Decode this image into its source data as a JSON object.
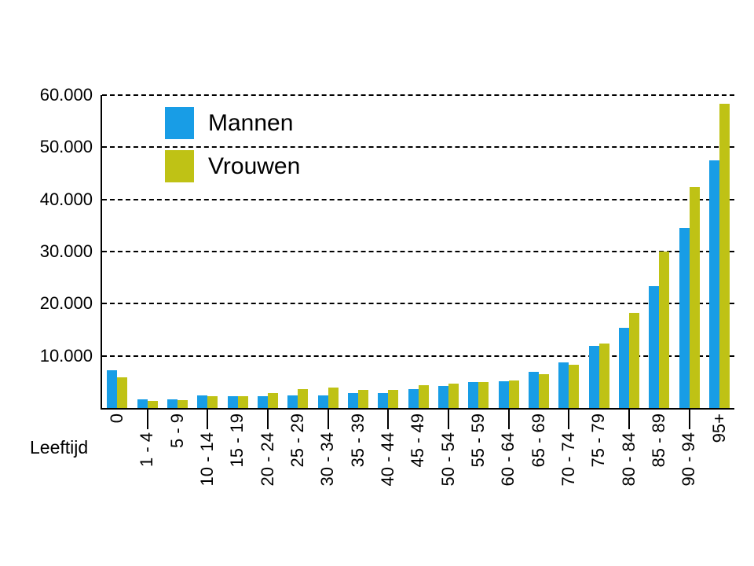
{
  "chart_data": {
    "type": "bar",
    "title": "",
    "xlabel": "Leeftijd",
    "ylabel": "",
    "categories": [
      "0",
      "1 - 4",
      "5 - 9",
      "10 - 14",
      "15 - 19",
      "20 - 24",
      "25 - 29",
      "30 - 34",
      "35 - 39",
      "40 - 44",
      "45 - 49",
      "50 - 54",
      "55 - 59",
      "60 - 64",
      "65 - 69",
      "70 - 74",
      "75 - 79",
      "80 - 84",
      "85 - 89",
      "90 - 94",
      "95+"
    ],
    "series": [
      {
        "name": "Mannen",
        "color": "#189DE6",
        "values": [
          7200,
          1700,
          1700,
          2400,
          2300,
          2300,
          2400,
          2400,
          2800,
          2900,
          3600,
          4200,
          5000,
          5200,
          7000,
          8700,
          11900,
          15400,
          23300,
          34500,
          47500
        ]
      },
      {
        "name": "Vrouwen",
        "color": "#BFC215",
        "values": [
          5900,
          1300,
          1500,
          2200,
          2300,
          2900,
          3600,
          3900,
          3500,
          3500,
          4300,
          4600,
          4900,
          5300,
          6500,
          8300,
          12300,
          18200,
          30000,
          42300,
          58300
        ]
      }
    ],
    "ylim": [
      0,
      60000
    ],
    "ytick_step": 10000,
    "ytick_labels": [
      "10.000",
      "20.000",
      "30.000",
      "40.000",
      "50.000",
      "60.000"
    ],
    "grid": "horizontal-dashed",
    "legend_position": "inside-top-left",
    "axis_color": "#000000",
    "background_color": "#FFFFFF"
  }
}
